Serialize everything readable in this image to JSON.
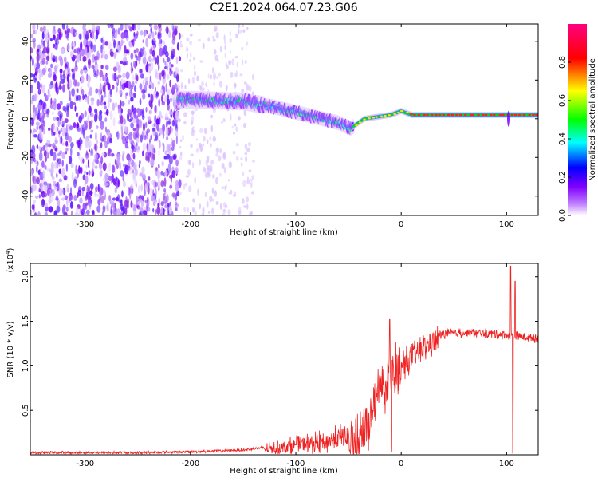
{
  "title": "C2E1.2024.064.07.23.G06",
  "chart_data": [
    {
      "type": "heatmap",
      "xlabel": "Height of straight line (km)",
      "ylabel": "Frequency (Hz)",
      "xlim": [
        -352,
        130
      ],
      "ylim": [
        -50,
        49
      ],
      "xticks": [
        -300,
        -200,
        -100,
        0,
        100
      ],
      "yticks": [
        -40,
        -20,
        0,
        20,
        40
      ],
      "colorbar": {
        "label": "Normalized spectral amplitude",
        "range": [
          0,
          1
        ],
        "ticks": [
          0.0,
          0.2,
          0.4,
          0.6,
          0.8
        ],
        "tick_labels": [
          "0.0",
          "0.2",
          "0.4",
          "0.6",
          "0.8"
        ],
        "colormap": [
          "#ffffff",
          "#8000ff",
          "#0000ff",
          "#00ffff",
          "#00ff00",
          "#ffff00",
          "#ff0000",
          "#ff00a0"
        ]
      },
      "ridge": {
        "description_points": [
          {
            "x": -210,
            "y": 10
          },
          {
            "x": -150,
            "y": 9
          },
          {
            "x": -120,
            "y": 6
          },
          {
            "x": -90,
            "y": 2
          },
          {
            "x": -60,
            "y": -2
          },
          {
            "x": -48,
            "y": -5
          },
          {
            "x": -35,
            "y": 0
          },
          {
            "x": -10,
            "y": 2
          },
          {
            "x": 0,
            "y": 4
          },
          {
            "x": 10,
            "y": 2
          },
          {
            "x": 130,
            "y": 2
          }
        ]
      },
      "noise_region_x": [
        -352,
        -210
      ],
      "sparse_region_x": [
        -210,
        -140
      ],
      "horizontal_line_y": 3
    },
    {
      "type": "line",
      "xlabel": "Height of straight line (km)",
      "ylabel": "SNR (10 * v/v)",
      "yscale_label": "(x10",
      "yscale_exp": "4",
      "yscale_close": ")",
      "xlim": [
        -352,
        130
      ],
      "ylim": [
        0,
        2.15
      ],
      "xticks": [
        -300,
        -200,
        -100,
        0,
        100
      ],
      "yticks": [
        0.5,
        1.0,
        1.5,
        2.0
      ],
      "ytick_labels": [
        "0.5",
        "1.0",
        "1.5",
        "2.0"
      ],
      "color": "#ee2222",
      "envelope": [
        {
          "x": -352,
          "y": 0.03
        },
        {
          "x": -250,
          "y": 0.03
        },
        {
          "x": -200,
          "y": 0.04
        },
        {
          "x": -150,
          "y": 0.06
        },
        {
          "x": -120,
          "y": 0.1
        },
        {
          "x": -100,
          "y": 0.15
        },
        {
          "x": -70,
          "y": 0.2
        },
        {
          "x": -45,
          "y": 0.3
        },
        {
          "x": -30,
          "y": 0.55
        },
        {
          "x": -20,
          "y": 0.85
        },
        {
          "x": -10,
          "y": 1.0
        },
        {
          "x": 0,
          "y": 1.05
        },
        {
          "x": 10,
          "y": 1.15
        },
        {
          "x": 20,
          "y": 1.25
        },
        {
          "x": 30,
          "y": 1.33
        },
        {
          "x": 40,
          "y": 1.38
        },
        {
          "x": 60,
          "y": 1.39
        },
        {
          "x": 90,
          "y": 1.38
        },
        {
          "x": 105,
          "y": 1.36
        },
        {
          "x": 130,
          "y": 1.33
        }
      ],
      "spikes": [
        {
          "x": -11,
          "y": 1.52
        },
        {
          "x": -9,
          "y": 0.04
        },
        {
          "x": 104,
          "y": 2.12
        },
        {
          "x": 106,
          "y": 0.02
        },
        {
          "x": 108,
          "y": 1.95
        }
      ]
    }
  ]
}
